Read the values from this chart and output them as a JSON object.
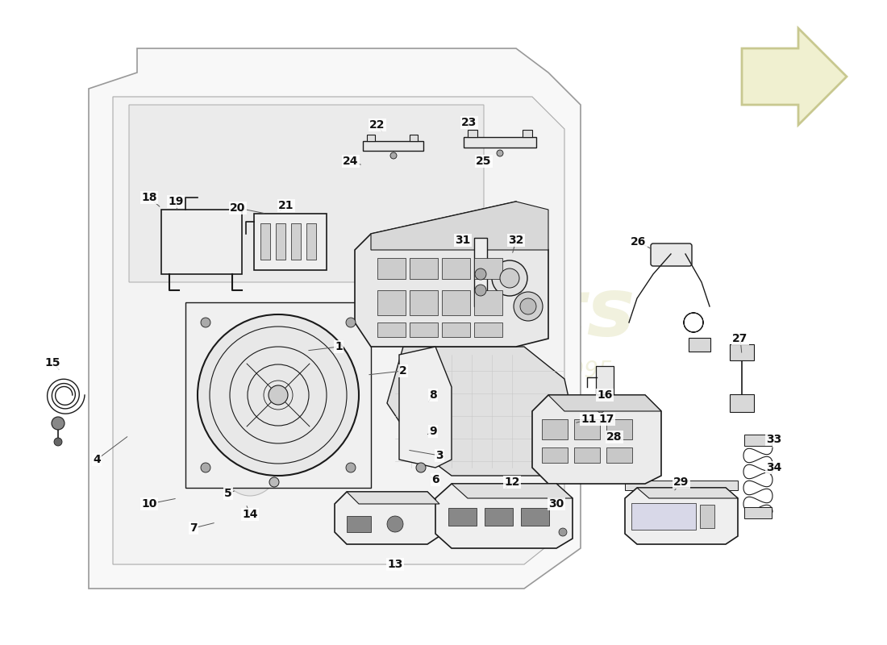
{
  "bg_color": "#ffffff",
  "line_color": "#1a1a1a",
  "label_color": "#111111",
  "label_fontsize": 10,
  "watermark_color": "#e8e8c8",
  "arrow_fill": "#f0f0d0",
  "arrow_edge": "#c8c890"
}
